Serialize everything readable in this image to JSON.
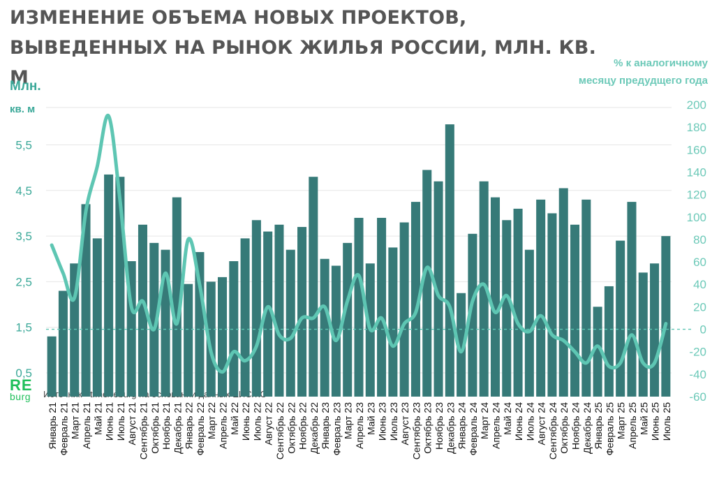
{
  "title": "ИЗМЕНЕНИЕ ОБЪЕМА НОВЫХ ПРОЕКТОВ, ВЫВЕДЕННЫХ НА РЫНОК ЖИЛЬЯ РОССИИ, МЛН. КВ. М",
  "left_axis_title": [
    "Млн.",
    "кв. м"
  ],
  "right_axis_title": [
    "% к аналогичному",
    "месяцу предудщего года"
  ],
  "source": "Источник - t.me/reburg на основании данных ЕИСЖС",
  "logo": {
    "top": "RE",
    "bottom": "burg"
  },
  "colors": {
    "bar": "#367a78",
    "line": "#5ec6b3",
    "axis_text_left": "#3aa898",
    "axis_text_right": "#6cc9b8",
    "title": "#555555",
    "logo": "#1fbf5a"
  },
  "chart_data": {
    "type": "bar",
    "categories": [
      "Январь 21",
      "Февраль 21",
      "Март 21",
      "Апрель 21",
      "Май 21",
      "Июнь 21",
      "Июль 21",
      "Август 21",
      "Сентябрь 21",
      "Октябрь 21",
      "Ноябрь 21",
      "Декабрь 21",
      "Январь 22",
      "Февраль 22",
      "Март 22",
      "Апрель 22",
      "Май 22",
      "Июнь 22",
      "Июль 22",
      "Август 22",
      "Сентябрь 22",
      "Октябрь 22",
      "Ноябрь 22",
      "Декабрь 22",
      "Январь 23",
      "Февраль 23",
      "Март 23",
      "Апрель 23",
      "Май 23",
      "Июнь 23",
      "Июль 23",
      "Август 23",
      "Сентябрь 23",
      "Октябрь 23",
      "Ноябрь 23",
      "Декабрь 23",
      "Январь 24",
      "Февраль 24",
      "Март 24",
      "Апрель 24",
      "Май 24",
      "Июнь 24",
      "Июль 24",
      "Август 24",
      "Сентябрь 24",
      "Октябрь 24",
      "Ноябрь 24",
      "Декабрь 24",
      "Январь 25",
      "Февраль 25",
      "Март 25",
      "Апрель 25",
      "Май 25",
      "Июнь 25",
      "Июль 25"
    ],
    "series": [
      {
        "axis": "left",
        "type": "bar",
        "values": [
          1.3,
          2.3,
          2.9,
          4.2,
          3.45,
          4.85,
          4.8,
          2.95,
          3.75,
          3.35,
          3.2,
          4.35,
          2.45,
          3.15,
          2.5,
          2.6,
          2.95,
          3.45,
          3.85,
          3.6,
          3.75,
          3.2,
          3.7,
          4.8,
          3.0,
          2.85,
          3.35,
          3.9,
          2.9,
          3.9,
          3.25,
          3.8,
          4.25,
          4.95,
          4.7,
          5.95,
          2.25,
          3.55,
          4.7,
          4.35,
          3.85,
          4.1,
          3.2,
          4.3,
          4.0,
          4.55,
          3.75,
          4.3,
          1.95,
          2.4,
          3.4,
          4.25,
          2.7,
          2.9,
          3.5
        ]
      },
      {
        "axis": "right",
        "type": "line",
        "values": [
          75,
          50,
          28,
          105,
          145,
          190,
          115,
          20,
          25,
          0,
          50,
          5,
          80,
          40,
          -20,
          -38,
          -20,
          -28,
          -15,
          20,
          -5,
          -8,
          10,
          10,
          20,
          -10,
          25,
          48,
          0,
          10,
          -15,
          5,
          15,
          55,
          30,
          20,
          -20,
          25,
          40,
          15,
          30,
          5,
          -2,
          12,
          -5,
          -10,
          -20,
          -30,
          -15,
          -33,
          -30,
          -5,
          -30,
          -30,
          5
        ]
      }
    ],
    "y_left": {
      "ticks": [
        "0,5",
        "1,5",
        "2,5",
        "3,5",
        "4,5",
        "5,5"
      ],
      "tick_values": [
        0.5,
        1.5,
        2.5,
        3.5,
        4.5,
        5.5
      ],
      "range": [
        -0.02,
        6.38
      ]
    },
    "y_right": {
      "ticks": [
        "200",
        "180",
        "160",
        "140",
        "120",
        "100",
        "80",
        "60",
        "40",
        "20",
        "0",
        "-20",
        "-40",
        "-60"
      ],
      "tick_values": [
        200,
        180,
        160,
        140,
        120,
        100,
        80,
        60,
        40,
        20,
        0,
        -20,
        -40,
        -60
      ],
      "range": [
        -60,
        200
      ]
    },
    "zero_reference_line": {
      "axis": "right",
      "value": 0,
      "style": "dashed"
    },
    "grid": true
  }
}
